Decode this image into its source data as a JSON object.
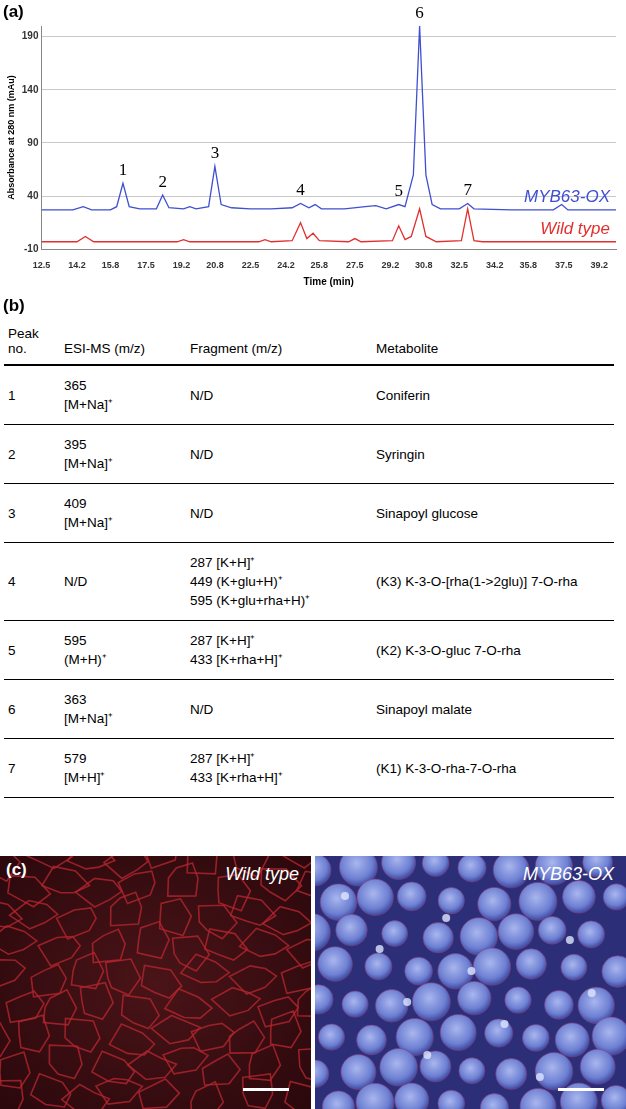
{
  "panel_labels": [
    "(a)",
    "(b)",
    "(c)"
  ],
  "chart_data": {
    "type": "line",
    "x_label": "Time (min)",
    "y_label": "Absorbance at 280 nm (mAu)",
    "xlim": [
      12.5,
      40
    ],
    "xticks": [
      12.5,
      14.2,
      15.8,
      17.5,
      19.2,
      20.8,
      22.5,
      24.2,
      25.8,
      27.5,
      29.2,
      30.8,
      32.5,
      34.2,
      35.8,
      37.5,
      39.2
    ],
    "ylim": [
      -10,
      200
    ],
    "yticks": [
      -10,
      40,
      90,
      140,
      190
    ],
    "grid": true,
    "series": [
      {
        "name": "MYB63-OX",
        "color": "#3f4fd0",
        "x": [
          12.5,
          14.0,
          14.5,
          14.9,
          15.8,
          16.1,
          16.4,
          16.7,
          17.2,
          18.0,
          18.3,
          18.6,
          19.3,
          19.6,
          19.9,
          20.5,
          20.8,
          21.1,
          21.6,
          22.5,
          23.5,
          24.5,
          24.9,
          25.3,
          25.6,
          25.9,
          27.0,
          28.0,
          28.5,
          29.0,
          29.6,
          29.9,
          30.3,
          30.6,
          30.9,
          31.2,
          31.6,
          32.5,
          32.9,
          33.2,
          35.0,
          37.0,
          37.4,
          37.7,
          40.0
        ],
        "values": [
          27,
          27,
          30,
          27,
          27,
          30,
          52,
          30,
          28,
          28,
          41,
          29,
          28,
          30,
          28,
          30,
          68,
          32,
          29,
          28,
          28,
          29,
          33,
          29,
          32,
          28,
          28,
          30,
          31,
          28,
          32,
          30,
          60,
          200,
          60,
          32,
          28,
          28,
          33,
          28,
          27,
          27,
          32,
          27,
          27
        ]
      },
      {
        "name": "Wild type",
        "color": "#e2302f",
        "x": [
          12.5,
          14.2,
          14.6,
          15.0,
          19.0,
          19.3,
          19.6,
          22.9,
          23.2,
          23.5,
          24.5,
          24.9,
          25.2,
          25.5,
          25.8,
          27.2,
          27.5,
          27.8,
          29.3,
          29.6,
          29.9,
          30.2,
          30.6,
          30.9,
          31.4,
          32.6,
          32.9,
          33.2,
          33.6,
          40.0
        ],
        "values": [
          -3,
          -3,
          2,
          -3,
          -3,
          -1,
          -3,
          -3,
          -1,
          -3,
          -2,
          15,
          0,
          5,
          -2,
          -3,
          0,
          -3,
          -2,
          12,
          -1,
          2,
          28,
          2,
          -3,
          -2,
          28,
          -2,
          -3,
          -3
        ]
      }
    ],
    "annotations": [
      {
        "text": "1",
        "x": 16.4,
        "y": 56
      },
      {
        "text": "2",
        "x": 18.3,
        "y": 45
      },
      {
        "text": "3",
        "x": 20.8,
        "y": 72
      },
      {
        "text": "4",
        "x": 24.9,
        "y": 37
      },
      {
        "text": "5",
        "x": 29.6,
        "y": 36
      },
      {
        "text": "6",
        "x": 30.6,
        "y": 204
      },
      {
        "text": "7",
        "x": 32.9,
        "y": 37
      }
    ]
  },
  "table": {
    "header": [
      "Peak no.",
      "ESI-MS (m/z)",
      "Fragment (m/z)",
      "Metabolite"
    ],
    "rows": [
      [
        1,
        [
          "365",
          "[M+Na]⁺"
        ],
        [
          "N/D"
        ],
        [
          "Coniferin"
        ]
      ],
      [
        2,
        [
          "395",
          "[M+Na]⁺"
        ],
        [
          "N/D"
        ],
        [
          "Syringin"
        ]
      ],
      [
        3,
        [
          "409",
          "[M+Na]⁺"
        ],
        [
          "N/D"
        ],
        [
          "Sinapoyl glucose"
        ]
      ],
      [
        4,
        [
          "N/D"
        ],
        [
          "287 [K+H]⁺",
          "449 (K+glu+H)⁺",
          "595 (K+glu+rha+H)⁺"
        ],
        [
          "(K3) K-3-O-[rha(1->2glu)] 7-O-rha"
        ]
      ],
      [
        5,
        [
          "595",
          "(M+H)⁺"
        ],
        [
          "287 [K+H]⁺",
          "433 [K+rha+H]⁺"
        ],
        [
          "(K2) K-3-O-gluc 7-O-rha"
        ]
      ],
      [
        6,
        [
          "363",
          "[M+Na]⁺"
        ],
        [
          "N/D"
        ],
        [
          "Sinapoyl malate"
        ]
      ],
      [
        7,
        [
          "579",
          "[M+H]⁺"
        ],
        [
          "287 [K+H]⁺",
          "433 [K+rha+H]⁺"
        ],
        [
          "(K1) K-3-O-rha-7-O-rha"
        ]
      ]
    ]
  },
  "images": [
    "Wild type",
    "MYB63-OX"
  ]
}
